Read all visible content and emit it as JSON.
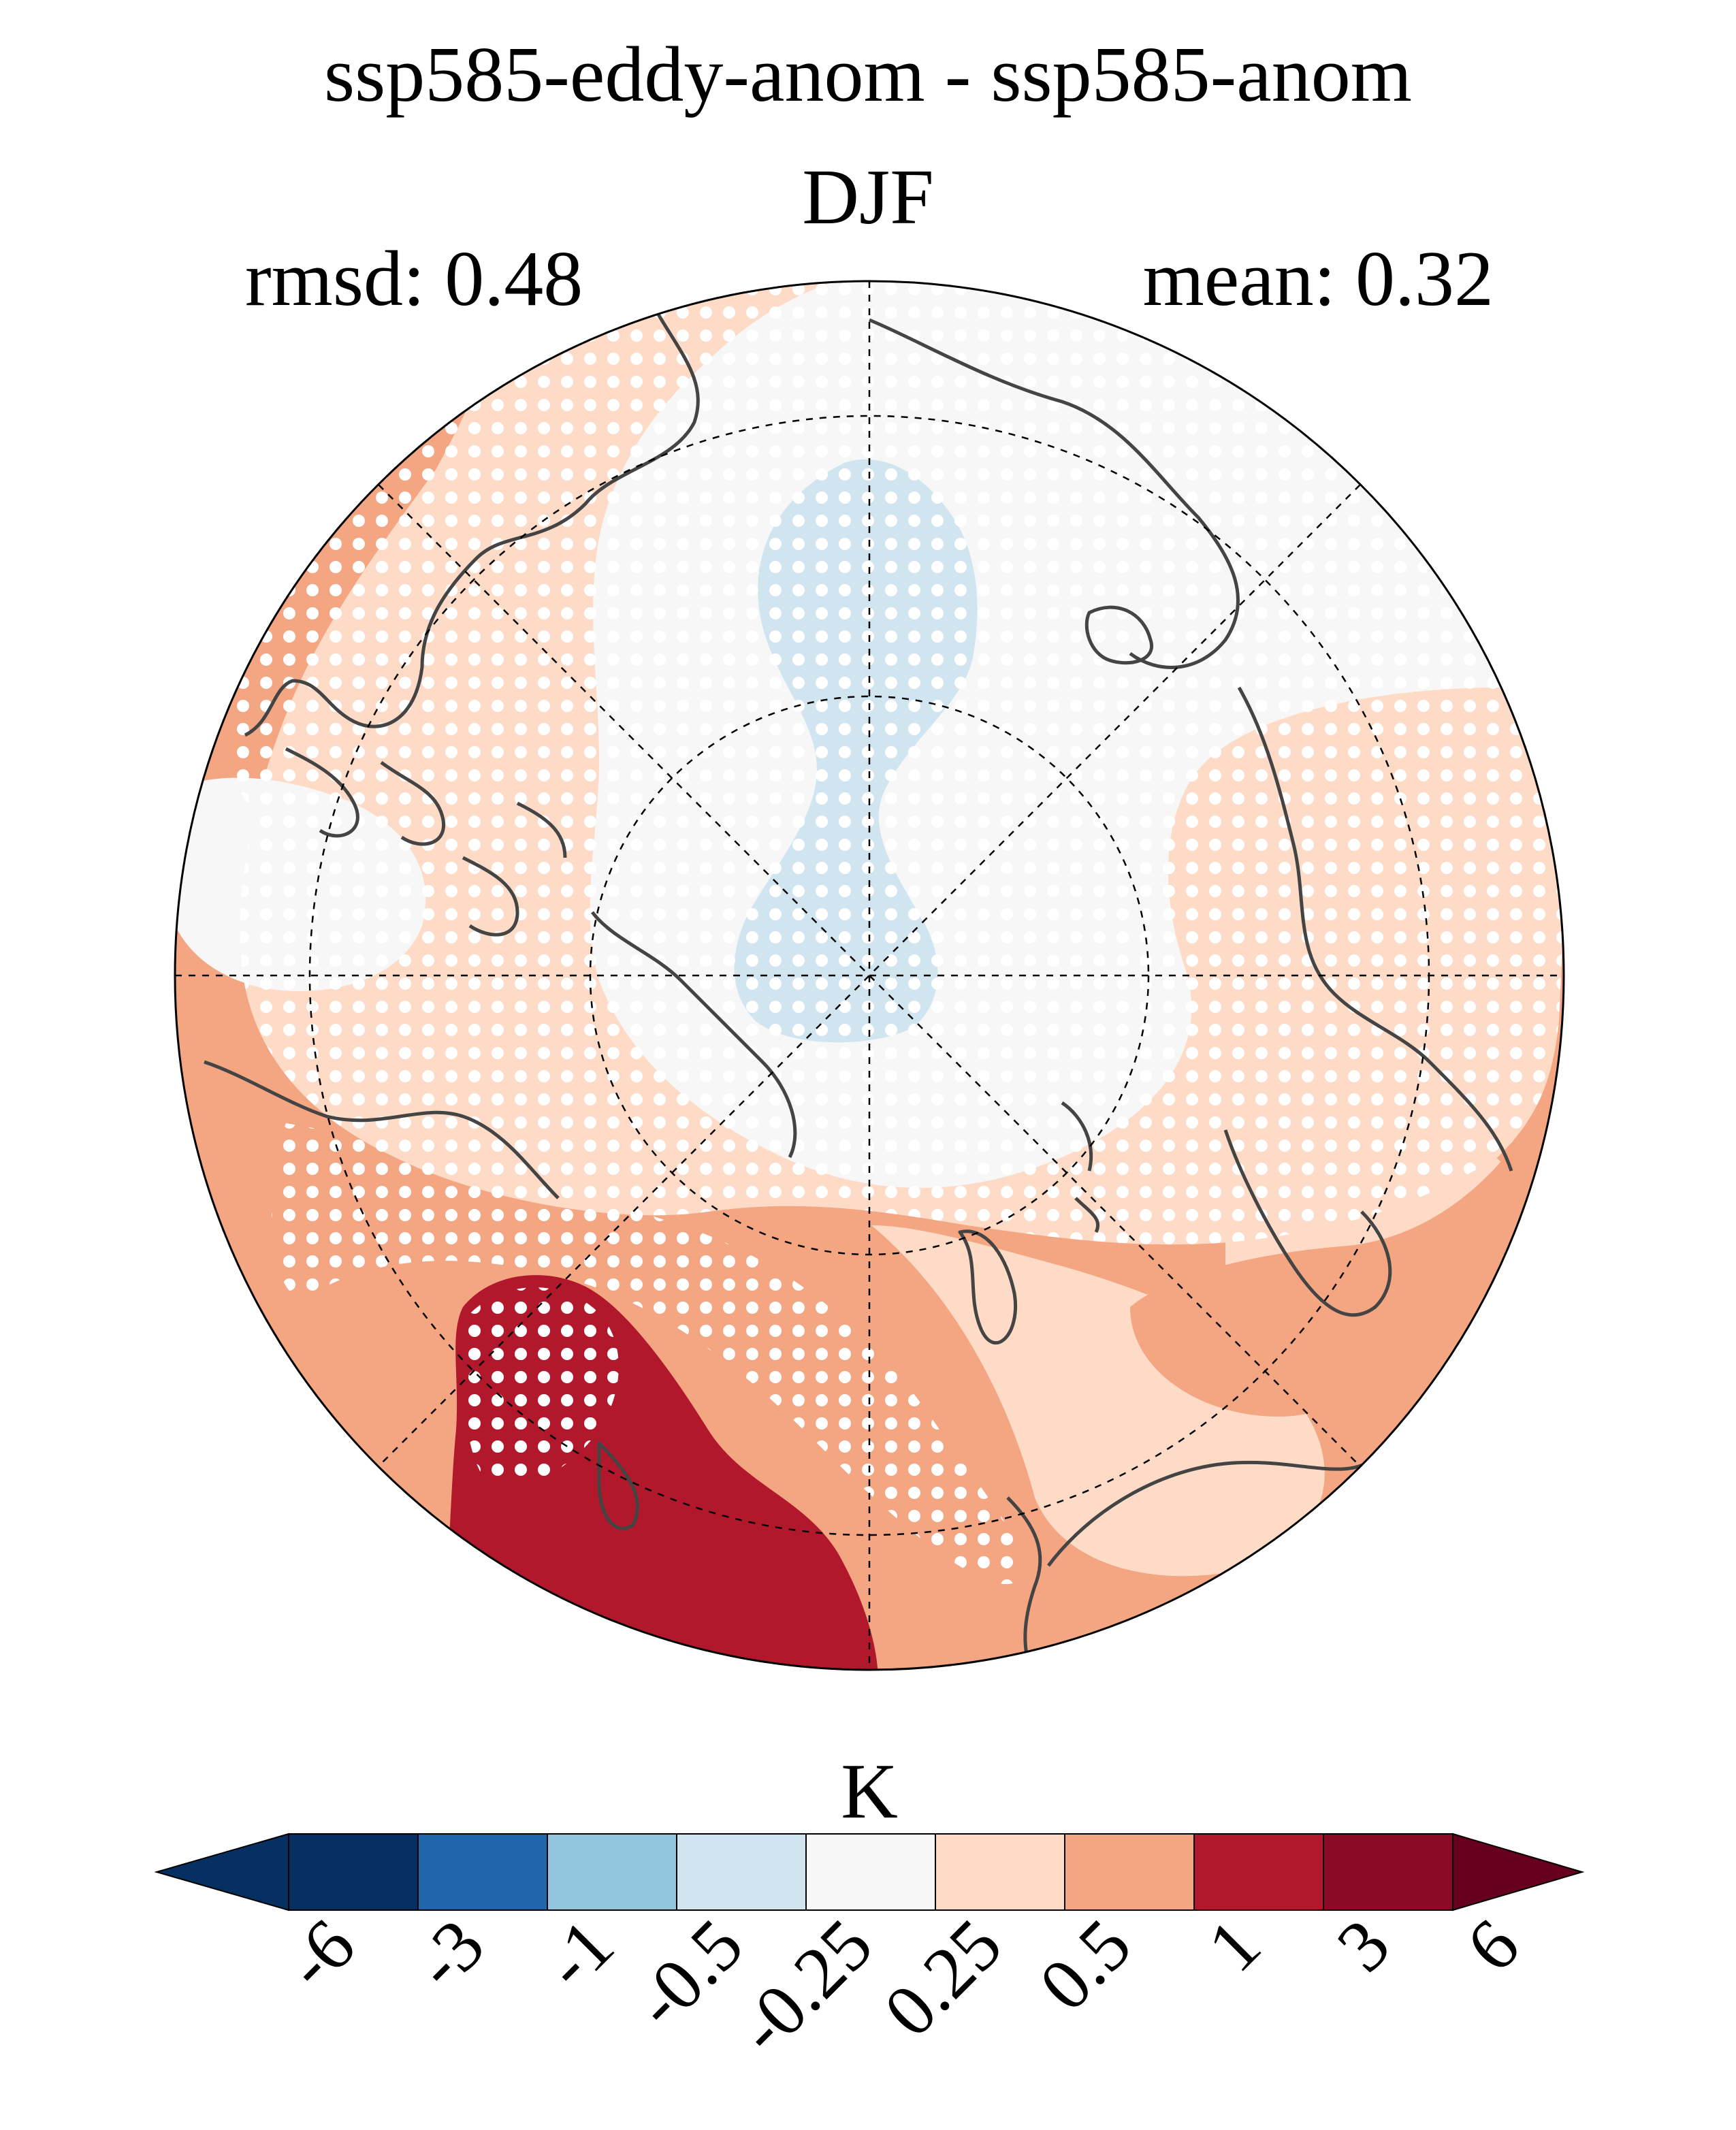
{
  "title": "ssp585-eddy-anom - ssp585-anom",
  "season": "DJF",
  "stats": {
    "rmsd_label": "rmsd: 0.48",
    "mean_label": "mean: 0.32"
  },
  "map": {
    "projection": "north-polar-stereographic",
    "variable_units": "K",
    "stippling": "white dots mark significant regions",
    "regions": [
      {
        "name": "central-arctic-neutral",
        "bin": "-0.25 to 0.25",
        "color": "#f7f7f7"
      },
      {
        "name": "arctic-tongue-cool",
        "bin": "-0.5 to -0.25",
        "color": "#d1e5f0"
      },
      {
        "name": "high-latitude-ring-light-warm",
        "bin": "0.25 to 0.5",
        "color": "#fddbc7"
      },
      {
        "name": "mid-latitude-warm",
        "bin": "0.5 to 1",
        "color": "#f4a582"
      },
      {
        "name": "central-asia-strong-warm",
        "bin": "1 to 3",
        "color": "#b2182b"
      }
    ]
  },
  "colorbar": {
    "label": "K",
    "extend": "both",
    "under_color": "#053061",
    "over_color": "#67001f",
    "colors": [
      "#053061",
      "#2166ac",
      "#92c5de",
      "#d1e5f0",
      "#f7f7f7",
      "#fddbc7",
      "#f4a582",
      "#b2182b",
      "#8a0b25"
    ],
    "ticks": [
      "-6",
      "-3",
      "-1",
      "-0.5",
      "-0.25",
      "0.25",
      "0.5",
      "1",
      "3",
      "6"
    ]
  }
}
